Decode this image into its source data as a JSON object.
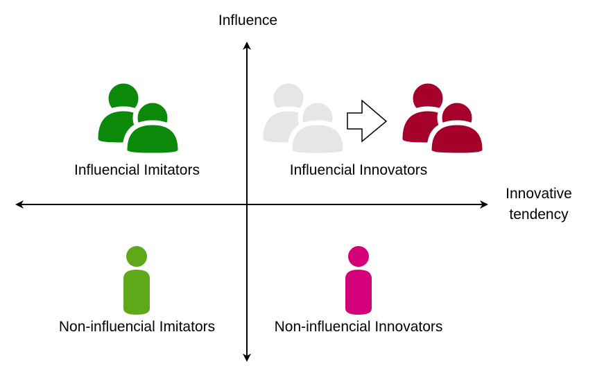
{
  "axes": {
    "y_label": "Influence",
    "x_label_line1": "Innovative",
    "x_label_line2": "tendency"
  },
  "quadrants": {
    "top_left": {
      "label": "Influencial Imitators",
      "icon": "group-icon",
      "color": "#0a8a08"
    },
    "top_right": {
      "label": "Influencial Innovators",
      "icon_from": "group-icon",
      "from_color": "#e6e6e6",
      "arrow_icon": "right-arrow-icon",
      "icon_to": "group-icon",
      "to_color": "#a50029"
    },
    "bottom_left": {
      "label": "Non-influencial Imitators",
      "icon": "person-icon",
      "color": "#5fa81a"
    },
    "bottom_right": {
      "label": "Non-influencial Innovators",
      "icon": "person-icon",
      "color": "#d4007a"
    }
  }
}
